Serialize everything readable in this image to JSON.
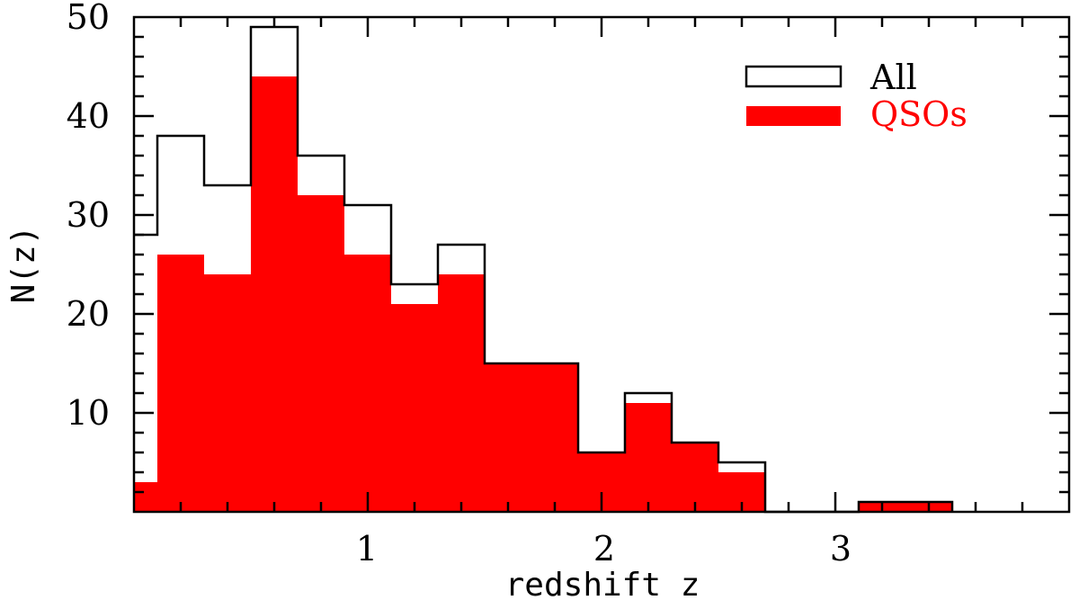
{
  "chart_data": {
    "type": "bar",
    "title": "",
    "xlabel": "redshift z",
    "ylabel": "N(z)",
    "xlim": [
      0,
      4
    ],
    "ylim": [
      0,
      50
    ],
    "x_ticks_major": [
      1,
      2,
      3
    ],
    "x_ticks_minor_step": 0.2,
    "y_ticks_major": [
      10,
      20,
      30,
      40,
      50
    ],
    "y_ticks_minor_step": 2,
    "grid": false,
    "legend_position": "upper right",
    "bin_edges": [
      0.0,
      0.1,
      0.3,
      0.5,
      0.7,
      0.9,
      1.1,
      1.3,
      1.5,
      1.7,
      1.9,
      2.1,
      2.3,
      2.5,
      2.7,
      2.9,
      3.1,
      3.3,
      3.5
    ],
    "series": [
      {
        "name": "All",
        "style": "step-outline",
        "color": "#000000",
        "values": [
          28,
          38,
          33,
          49,
          36,
          31,
          23,
          27,
          15,
          15,
          6,
          12,
          7,
          5,
          0,
          0,
          1,
          1
        ]
      },
      {
        "name": "QSOs",
        "style": "filled",
        "color": "#ff0000",
        "values": [
          3,
          26,
          24,
          44,
          32,
          26,
          21,
          24,
          15,
          15,
          6,
          11,
          7,
          4,
          0,
          0,
          1,
          1
        ]
      }
    ]
  },
  "axes": {
    "x_tick_labels": [
      "1",
      "2",
      "3"
    ],
    "y_tick_labels": [
      "10",
      "20",
      "30",
      "40",
      "50"
    ],
    "xlabel": "redshift z",
    "ylabel": "N(z)"
  },
  "legend": {
    "items": [
      {
        "label": "All",
        "color": "#000000"
      },
      {
        "label": "QSOs",
        "color": "#ff0000"
      }
    ]
  }
}
